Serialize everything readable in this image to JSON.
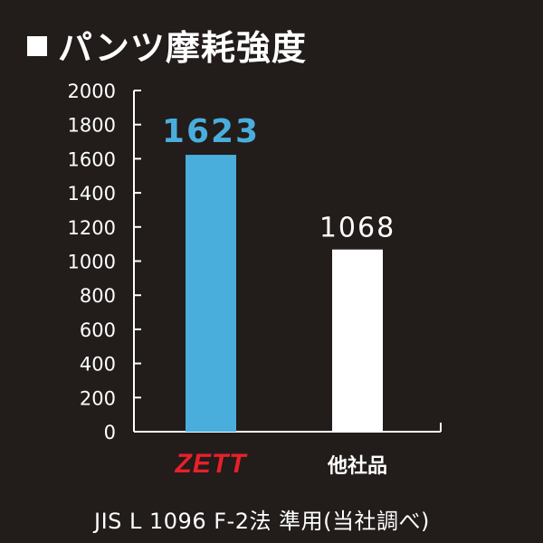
{
  "title": "パンツ摩耗強度",
  "footnote": "JIS L 1096 F-2法 準用(当社調べ)",
  "colors": {
    "background": "#221c1b",
    "zett_bar": "#4aaedc",
    "other_bar": "#ffffff",
    "zett_logo": "#e8202a",
    "axis": "#ffffff"
  },
  "chart_data": {
    "type": "bar",
    "title": "パンツ摩耗強度",
    "categories": [
      "ZETT",
      "他社品"
    ],
    "values": [
      1623,
      1068
    ],
    "data_labels": [
      "1623",
      "1068"
    ],
    "ylim": [
      0,
      2000
    ],
    "yticks": [
      0,
      200,
      400,
      600,
      800,
      1000,
      1200,
      1400,
      1600,
      1800,
      2000
    ],
    "xlabel": "",
    "ylabel": "",
    "grid": false,
    "legend": "none"
  }
}
